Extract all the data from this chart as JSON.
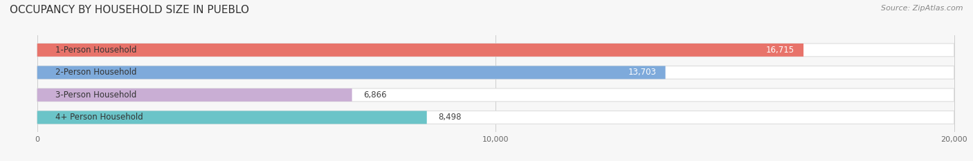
{
  "title": "OCCUPANCY BY HOUSEHOLD SIZE IN PUEBLO",
  "source": "Source: ZipAtlas.com",
  "categories": [
    "1-Person Household",
    "2-Person Household",
    "3-Person Household",
    "4+ Person Household"
  ],
  "values": [
    16715,
    13703,
    6866,
    8498
  ],
  "bar_colors": [
    "#e8736a",
    "#7eaadb",
    "#c9aed4",
    "#6bc4c8"
  ],
  "xlim": [
    0,
    20000
  ],
  "xticks": [
    0,
    10000,
    20000
  ],
  "xtick_labels": [
    "0",
    "10,000",
    "20,000"
  ],
  "background_color": "#f7f7f7",
  "bar_background_color": "#ffffff",
  "bar_bg_edge_color": "#dddddd",
  "title_fontsize": 11,
  "source_fontsize": 8,
  "label_fontsize": 8.5,
  "value_fontsize": 8.5
}
